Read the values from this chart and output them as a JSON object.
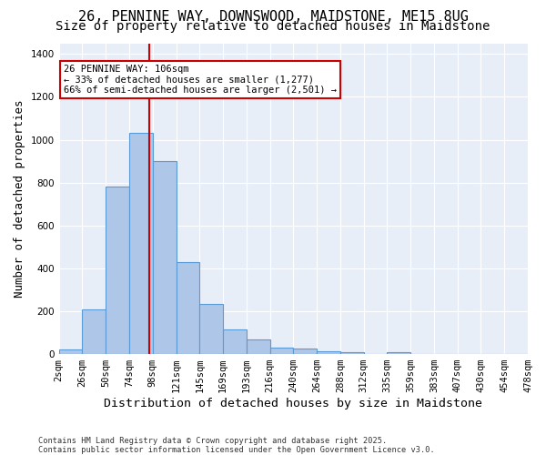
{
  "title1": "26, PENNINE WAY, DOWNSWOOD, MAIDSTONE, ME15 8UG",
  "title2": "Size of property relative to detached houses in Maidstone",
  "xlabel": "Distribution of detached houses by size in Maidstone",
  "ylabel": "Number of detached properties",
  "tick_labels": [
    "2sqm",
    "26sqm",
    "50sqm",
    "74sqm",
    "98sqm",
    "121sqm",
    "145sqm",
    "169sqm",
    "193sqm",
    "216sqm",
    "240sqm",
    "264sqm",
    "288sqm",
    "312sqm",
    "335sqm",
    "359sqm",
    "383sqm",
    "407sqm",
    "430sqm",
    "454sqm",
    "478sqm"
  ],
  "bar_values": [
    20,
    210,
    780,
    1030,
    900,
    430,
    235,
    115,
    70,
    30,
    25,
    15,
    10,
    0,
    10,
    0,
    0,
    0,
    0,
    0
  ],
  "bar_color": "#aec6e8",
  "bar_edge_color": "#5b9bd5",
  "vline_x": 3.35,
  "vline_color": "#cc0000",
  "annotation_text": "26 PENNINE WAY: 106sqm\n← 33% of detached houses are smaller (1,277)\n66% of semi-detached houses are larger (2,501) →",
  "annotation_box_color": "#ffffff",
  "annotation_box_edge": "#cc0000",
  "ylim": [
    0,
    1450
  ],
  "background_color": "#e8eef7",
  "footer": "Contains HM Land Registry data © Crown copyright and database right 2025.\nContains public sector information licensed under the Open Government Licence v3.0.",
  "title_fontsize": 11,
  "subtitle_fontsize": 10,
  "axis_label_fontsize": 9,
  "tick_fontsize": 7.5
}
